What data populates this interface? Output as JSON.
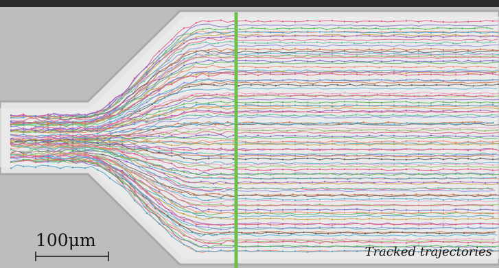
{
  "scale_bar": {
    "label": "100μm"
  },
  "caption": "Tracked trajectories",
  "colors": {
    "background": "#2b2b2b",
    "channel_fill": "#e4e4e4",
    "wall_shade": "#bdbdbd",
    "measurement_line": "#6cc04a",
    "trajectory_palette": [
      "#e05a8a",
      "#7b68c8",
      "#5cb85c",
      "#f08a6c",
      "#4aa3c8",
      "#c8a040",
      "#a060c0",
      "#e0607a",
      "#60c0a0",
      "#8888e0",
      "#d07040",
      "#606060",
      "#50b0d0",
      "#e8a0c0",
      "#90c060"
    ]
  }
}
